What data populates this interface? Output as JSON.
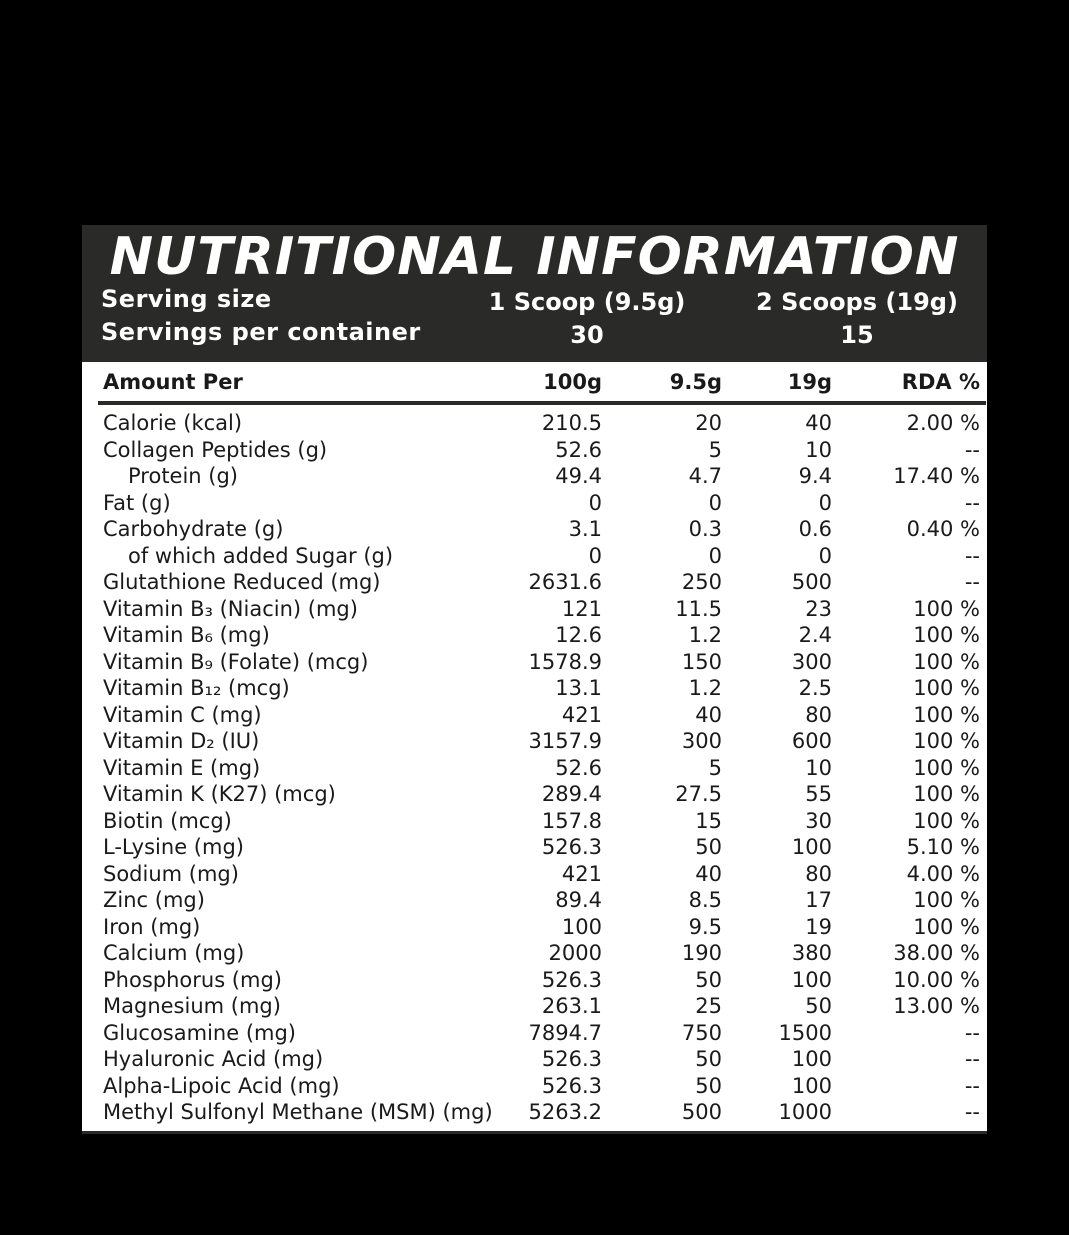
{
  "title": "NUTRITIONAL INFORMATION",
  "serving": {
    "size_label": "Serving size",
    "size_1": "1 Scoop (9.5g)",
    "size_2": "2 Scoops (19g)",
    "per_container_label": "Servings per container",
    "per_container_1": "30",
    "per_container_2": "15"
  },
  "columns": {
    "name": "Amount Per",
    "c100": "100g",
    "c95": "9.5g",
    "c19": "19g",
    "rda": "RDA %"
  },
  "rows": [
    {
      "name": "Calorie (kcal)",
      "c100": "210.5",
      "c95": "20",
      "c19": "40",
      "rda": "2.00 %",
      "indent": false
    },
    {
      "name": "Collagen Peptides (g)",
      "c100": "52.6",
      "c95": "5",
      "c19": "10",
      "rda": "--",
      "indent": false
    },
    {
      "name": "Protein (g)",
      "c100": "49.4",
      "c95": "4.7",
      "c19": "9.4",
      "rda": "17.40 %",
      "indent": true
    },
    {
      "name": "Fat (g)",
      "c100": "0",
      "c95": "0",
      "c19": "0",
      "rda": "--",
      "indent": false
    },
    {
      "name": "Carbohydrate (g)",
      "c100": "3.1",
      "c95": "0.3",
      "c19": "0.6",
      "rda": "0.40 %",
      "indent": false
    },
    {
      "name": "of which added Sugar (g)",
      "c100": "0",
      "c95": "0",
      "c19": "0",
      "rda": "--",
      "indent": true
    },
    {
      "name": "Glutathione Reduced (mg)",
      "c100": "2631.6",
      "c95": "250",
      "c19": "500",
      "rda": "--",
      "indent": false
    },
    {
      "name": "Vitamin B₃ (Niacin) (mg)",
      "c100": "121",
      "c95": "11.5",
      "c19": "23",
      "rda": "100 %",
      "indent": false
    },
    {
      "name": "Vitamin B₆ (mg)",
      "c100": "12.6",
      "c95": "1.2",
      "c19": "2.4",
      "rda": "100 %",
      "indent": false
    },
    {
      "name": "Vitamin B₉ (Folate) (mcg)",
      "c100": "1578.9",
      "c95": "150",
      "c19": "300",
      "rda": "100 %",
      "indent": false
    },
    {
      "name": "Vitamin B₁₂ (mcg)",
      "c100": "13.1",
      "c95": "1.2",
      "c19": "2.5",
      "rda": "100 %",
      "indent": false
    },
    {
      "name": "Vitamin C (mg)",
      "c100": "421",
      "c95": "40",
      "c19": "80",
      "rda": "100 %",
      "indent": false
    },
    {
      "name": "Vitamin D₂ (IU)",
      "c100": "3157.9",
      "c95": "300",
      "c19": "600",
      "rda": "100 %",
      "indent": false
    },
    {
      "name": "Vitamin E (mg)",
      "c100": "52.6",
      "c95": "5",
      "c19": "10",
      "rda": "100 %",
      "indent": false
    },
    {
      "name": "Vitamin K (K27) (mcg)",
      "c100": "289.4",
      "c95": "27.5",
      "c19": "55",
      "rda": "100 %",
      "indent": false
    },
    {
      "name": "Biotin (mcg)",
      "c100": "157.8",
      "c95": "15",
      "c19": "30",
      "rda": "100 %",
      "indent": false
    },
    {
      "name": "L-Lysine (mg)",
      "c100": "526.3",
      "c95": "50",
      "c19": "100",
      "rda": "5.10 %",
      "indent": false
    },
    {
      "name": "Sodium (mg)",
      "c100": "421",
      "c95": "40",
      "c19": "80",
      "rda": "4.00 %",
      "indent": false
    },
    {
      "name": "Zinc (mg)",
      "c100": "89.4",
      "c95": "8.5",
      "c19": "17",
      "rda": "100 %",
      "indent": false
    },
    {
      "name": "Iron (mg)",
      "c100": "100",
      "c95": "9.5",
      "c19": "19",
      "rda": "100 %",
      "indent": false
    },
    {
      "name": "Calcium (mg)",
      "c100": "2000",
      "c95": "190",
      "c19": "380",
      "rda": "38.00 %",
      "indent": false
    },
    {
      "name": "Phosphorus (mg)",
      "c100": "526.3",
      "c95": "50",
      "c19": "100",
      "rda": "10.00 %",
      "indent": false
    },
    {
      "name": "Magnesium (mg)",
      "c100": "263.1",
      "c95": "25",
      "c19": "50",
      "rda": "13.00 %",
      "indent": false
    },
    {
      "name": "Glucosamine (mg)",
      "c100": "7894.7",
      "c95": "750",
      "c19": "1500",
      "rda": "--",
      "indent": false
    },
    {
      "name": "Hyaluronic Acid (mg)",
      "c100": "526.3",
      "c95": "50",
      "c19": "100",
      "rda": "--",
      "indent": false
    },
    {
      "name": "Alpha-Lipoic Acid (mg)",
      "c100": "526.3",
      "c95": "50",
      "c19": "100",
      "rda": "--",
      "indent": false
    },
    {
      "name": "Methyl Sulfonyl Methane (MSM) (mg)",
      "c100": "5263.2",
      "c95": "500",
      "c19": "1000",
      "rda": "--",
      "indent": false
    }
  ]
}
